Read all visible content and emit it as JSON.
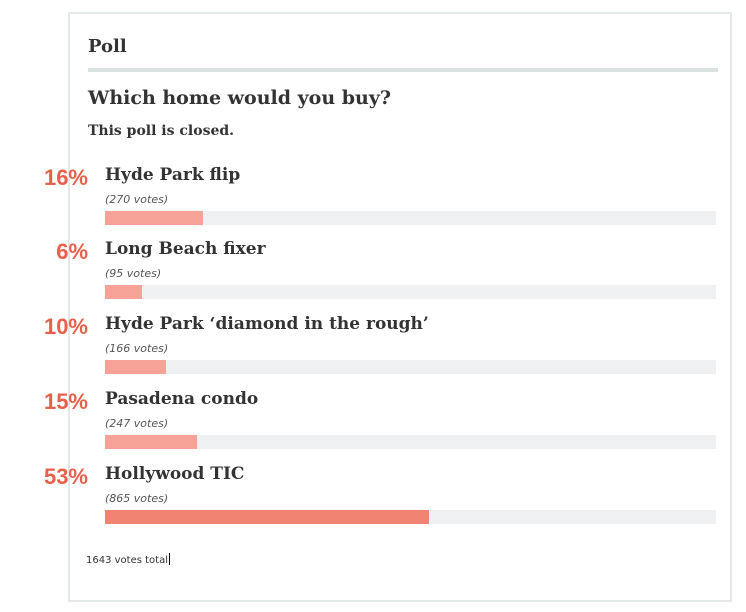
{
  "poll": {
    "header": "Poll",
    "question": "Which home would you buy?",
    "status": "This poll is closed.",
    "total": "1643 votes total",
    "options": [
      {
        "percent_text": "16%",
        "label": "Hyde Park flip",
        "votes_text": "(270 votes)",
        "share": 0.16,
        "winner": false
      },
      {
        "percent_text": "6%",
        "label": "Long Beach fixer",
        "votes_text": "(95 votes)",
        "share": 0.06,
        "winner": false
      },
      {
        "percent_text": "10%",
        "label": "Hyde Park ‘diamond in the rough’",
        "votes_text": "(166 votes)",
        "share": 0.1,
        "winner": false
      },
      {
        "percent_text": "15%",
        "label": "Pasadena condo",
        "votes_text": "(247 votes)",
        "share": 0.15,
        "winner": false
      },
      {
        "percent_text": "53%",
        "label": "Hollywood TIC",
        "votes_text": "(865 votes)",
        "share": 0.53,
        "winner": true
      }
    ]
  }
}
